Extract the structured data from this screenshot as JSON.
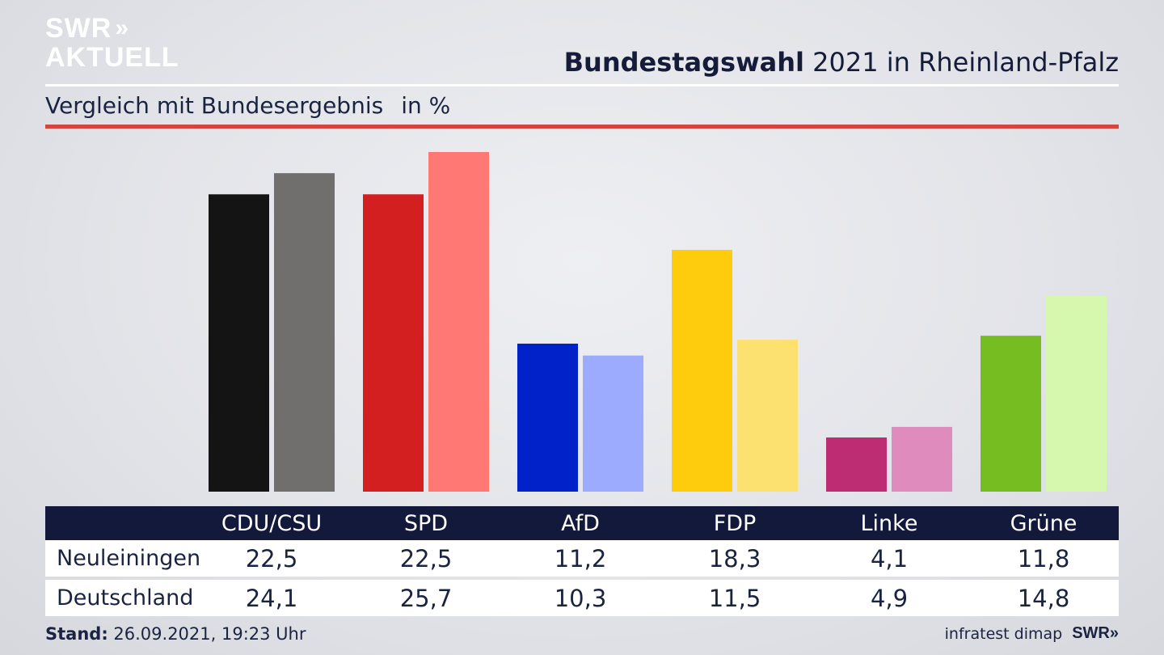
{
  "logo": {
    "line1": "SWR",
    "chevrons": "»",
    "line2": "AKTUELL"
  },
  "headline": {
    "bold": "Bundestagswahl",
    "rest": " 2021 in Rheinland-Pfalz"
  },
  "subtitle": {
    "text": "Vergleich mit Bundesergebnis",
    "unit": "in %"
  },
  "colors": {
    "accent_rule": "#d5453f",
    "table_header": "#13193a"
  },
  "chart_data": {
    "type": "bar",
    "title": "Bundestagswahl 2021 in Rheinland-Pfalz",
    "subtitle": "Vergleich mit Bundesergebnis",
    "unit": "in %",
    "categories": [
      "CDU/CSU",
      "SPD",
      "AfD",
      "FDP",
      "Linke",
      "Grüne"
    ],
    "series": [
      {
        "name": "Neuleiningen",
        "values": [
          22.5,
          22.5,
          11.2,
          18.3,
          4.1,
          11.8
        ],
        "labels": [
          "22,5",
          "22,5",
          "11,2",
          "18,3",
          "4,1",
          "11,8"
        ],
        "colors": [
          "#141414",
          "#d41f20",
          "#0022c8",
          "#fecb0d",
          "#bd2d74",
          "#76bd21"
        ]
      },
      {
        "name": "Deutschland",
        "values": [
          24.1,
          25.7,
          10.3,
          11.5,
          4.9,
          14.8
        ],
        "labels": [
          "24,1",
          "25,7",
          "10,3",
          "11,5",
          "4,9",
          "14,8"
        ],
        "colors": [
          "#706f6d",
          "#ff7873",
          "#9cabfe",
          "#fde170",
          "#df8bbe",
          "#d5f7ae"
        ]
      }
    ],
    "ylim": [
      0,
      25.7
    ],
    "grid": false,
    "legend": "table-below"
  },
  "footer": {
    "stand_label": "Stand:",
    "stand_value": " 26.09.2021, 19:23 Uhr",
    "source": "infratest dimap",
    "brand": "SWR»"
  }
}
